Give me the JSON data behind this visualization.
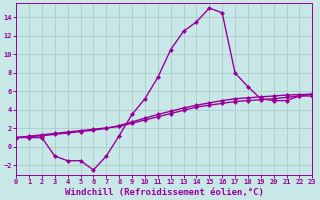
{
  "xlabel": "Windchill (Refroidissement éolien,°C)",
  "bg_color": "#c8e8e8",
  "grid_color": "#b0d0d0",
  "line_color": "#990099",
  "marker": "D",
  "markersize": 2.5,
  "linewidth": 1.0,
  "xlim": [
    0,
    23
  ],
  "ylim": [
    -3.0,
    15.5
  ],
  "xticks": [
    0,
    1,
    2,
    3,
    4,
    5,
    6,
    7,
    8,
    9,
    10,
    11,
    12,
    13,
    14,
    15,
    16,
    17,
    18,
    19,
    20,
    21,
    22,
    23
  ],
  "yticks": [
    -2,
    0,
    2,
    4,
    6,
    8,
    10,
    12,
    14
  ],
  "curve1_y": [
    1.0,
    1.0,
    1.0,
    -1.0,
    -1.5,
    -1.5,
    -2.5,
    -1.0,
    1.2,
    3.5,
    5.2,
    7.5,
    10.5,
    12.5,
    13.5,
    15.0,
    14.5,
    8.0,
    6.5,
    5.2,
    5.0,
    5.0,
    5.5,
    5.5
  ],
  "curve2_y": [
    1.0,
    1.15,
    1.3,
    1.45,
    1.6,
    1.75,
    1.9,
    2.05,
    2.2,
    2.55,
    2.9,
    3.25,
    3.6,
    3.95,
    4.3,
    4.5,
    4.7,
    4.9,
    5.0,
    5.1,
    5.2,
    5.35,
    5.5,
    5.7
  ],
  "curve3_y": [
    1.0,
    1.1,
    1.2,
    1.35,
    1.5,
    1.65,
    1.8,
    2.0,
    2.3,
    2.7,
    3.1,
    3.5,
    3.85,
    4.2,
    4.5,
    4.75,
    5.0,
    5.2,
    5.3,
    5.4,
    5.5,
    5.6,
    5.65,
    5.7
  ],
  "axis_fontsize": 6.5,
  "tick_fontsize": 5.0
}
